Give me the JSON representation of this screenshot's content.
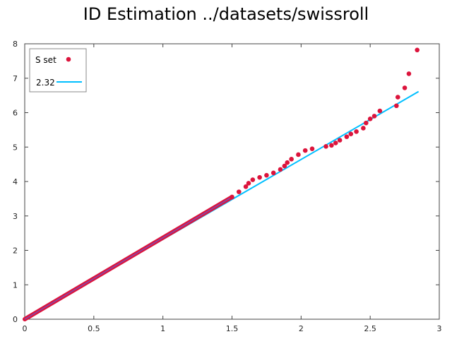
{
  "chart_data": {
    "type": "scatter",
    "title": "ID Estimation ../datasets/swissroll",
    "xlim": [
      0,
      3
    ],
    "ylim": [
      0,
      8
    ],
    "xticks": [
      "0",
      "0.5",
      "1",
      "1.5",
      "2",
      "2.5",
      "3"
    ],
    "yticks": [
      "0",
      "1",
      "2",
      "3",
      "4",
      "5",
      "6",
      "7",
      "8"
    ],
    "grid": false,
    "legend_position": "top-left",
    "series": [
      {
        "name": "S set",
        "kind": "points",
        "color": "#dc143c",
        "points": [
          [
            1.5,
            3.55
          ],
          [
            1.55,
            3.7
          ],
          [
            1.6,
            3.85
          ],
          [
            1.62,
            3.95
          ],
          [
            1.65,
            4.05
          ],
          [
            1.7,
            4.12
          ],
          [
            1.75,
            4.18
          ],
          [
            1.8,
            4.25
          ],
          [
            1.85,
            4.35
          ],
          [
            1.88,
            4.45
          ],
          [
            1.9,
            4.55
          ],
          [
            1.93,
            4.65
          ],
          [
            1.98,
            4.78
          ],
          [
            2.03,
            4.9
          ],
          [
            2.08,
            4.95
          ],
          [
            2.18,
            5.02
          ],
          [
            2.22,
            5.05
          ],
          [
            2.25,
            5.12
          ],
          [
            2.28,
            5.2
          ],
          [
            2.33,
            5.3
          ],
          [
            2.36,
            5.38
          ],
          [
            2.4,
            5.45
          ],
          [
            2.45,
            5.55
          ],
          [
            2.47,
            5.7
          ],
          [
            2.5,
            5.82
          ],
          [
            2.53,
            5.9
          ],
          [
            2.57,
            6.05
          ],
          [
            2.69,
            6.2
          ],
          [
            2.7,
            6.45
          ],
          [
            2.75,
            6.72
          ],
          [
            2.78,
            7.13
          ],
          [
            2.84,
            7.82
          ]
        ]
      },
      {
        "name": "2.32",
        "kind": "line",
        "slope": 2.32,
        "color": "#00bfff",
        "x_range": [
          0,
          2.85
        ]
      }
    ]
  }
}
